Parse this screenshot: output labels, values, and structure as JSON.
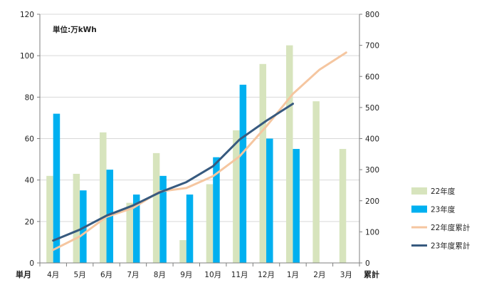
{
  "chart_data": {
    "type": "bar",
    "unit_label": "単位:万kWh",
    "xlabel_left": "単月",
    "xlabel_right": "累計",
    "categories": [
      "4月",
      "5月",
      "6月",
      "7月",
      "8月",
      "9月",
      "10月",
      "11月",
      "12月",
      "1月",
      "2月",
      "3月"
    ],
    "y_left": {
      "min": 0,
      "max": 120,
      "step": 20
    },
    "y_right": {
      "min": 0,
      "max": 800,
      "step": 100
    },
    "grid": "horizontal",
    "legend_position": "right",
    "series": [
      {
        "name": "22年度",
        "type": "bar",
        "axis": "left",
        "color": "#d7e4bd",
        "values": [
          42,
          43,
          63,
          29,
          53,
          11,
          38,
          64,
          96,
          105,
          78,
          55
        ]
      },
      {
        "name": "23年度",
        "type": "bar",
        "axis": "left",
        "color": "#00b0f0",
        "values": [
          72,
          35,
          45,
          33,
          42,
          33,
          51,
          86,
          60,
          55,
          null,
          null
        ]
      },
      {
        "name": "22年度累計",
        "type": "line",
        "axis": "right",
        "color": "#f5c6a0",
        "values": [
          42,
          85,
          148,
          177,
          230,
          241,
          279,
          343,
          439,
          544,
          622,
          677
        ]
      },
      {
        "name": "23年度累計",
        "type": "line",
        "axis": "right",
        "color": "#375a7f",
        "values": [
          72,
          107,
          152,
          185,
          227,
          260,
          311,
          397,
          457,
          512,
          null,
          null
        ]
      }
    ]
  }
}
